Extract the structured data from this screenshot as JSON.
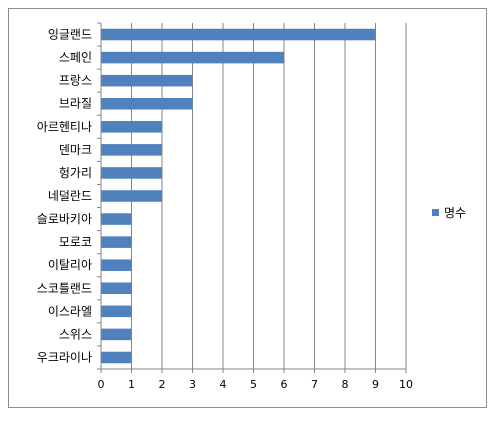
{
  "chart_data": {
    "type": "bar",
    "orientation": "horizontal",
    "categories": [
      "잉글랜드",
      "스페인",
      "프랑스",
      "브라질",
      "아르헨티나",
      "덴마크",
      "헝가리",
      "네덜란드",
      "슬로바키아",
      "모로코",
      "이탈리아",
      "스코틀랜드",
      "이스라엘",
      "스위스",
      "우크라이나"
    ],
    "series": [
      {
        "name": "명수",
        "values": [
          9,
          6,
          3,
          3,
          2,
          2,
          2,
          2,
          1,
          1,
          1,
          1,
          1,
          1,
          1
        ],
        "color": "#4F81BD"
      }
    ],
    "xlim": [
      0,
      10
    ],
    "xticks": [
      "0",
      "1",
      "2",
      "3",
      "4",
      "5",
      "6",
      "7",
      "8",
      "9",
      "10"
    ],
    "grid": "vertical major gridlines",
    "legend": "right"
  }
}
